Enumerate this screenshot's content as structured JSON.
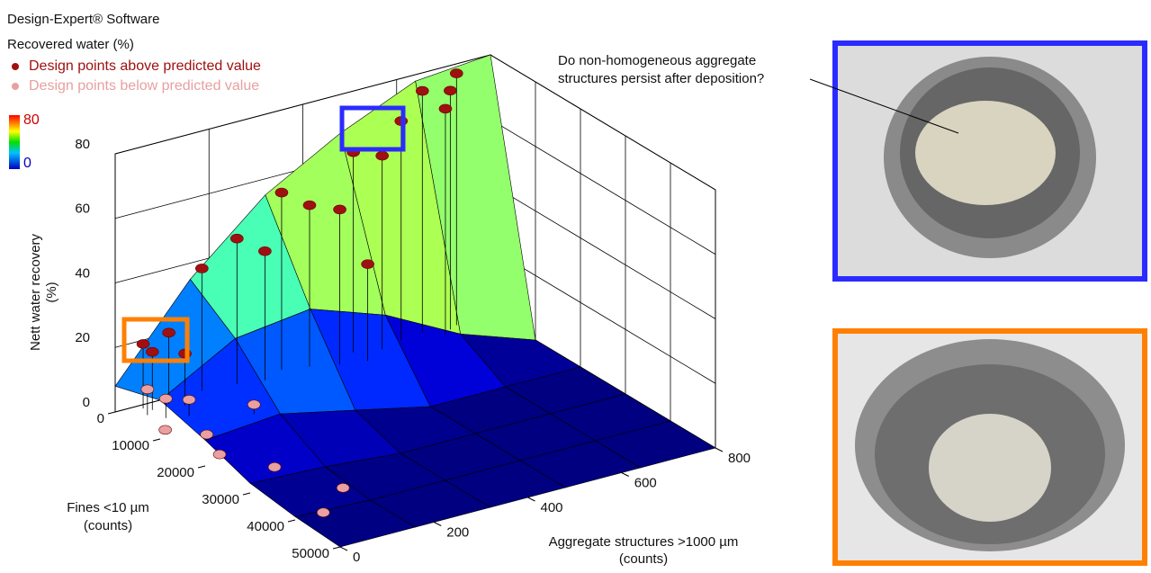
{
  "header": {
    "software": "Design-Expert® Software",
    "response": "Recovered water  (%)"
  },
  "chart_data": {
    "type": "surface3d",
    "zlabel": [
      "Nett water recovery",
      "(%)"
    ],
    "xlabel": [
      "Fines <10 µm",
      "(counts)"
    ],
    "ylabel": [
      "Aggregate structures >1000 µm",
      "(counts)"
    ],
    "xlim": [
      0,
      50000
    ],
    "xticks": [
      0,
      10000,
      20000,
      30000,
      40000,
      50000
    ],
    "ylim": [
      0,
      800
    ],
    "yticks": [
      0,
      200,
      400,
      600,
      800
    ],
    "zlim": [
      0,
      80
    ],
    "zticks": [
      0,
      20,
      40,
      60,
      80
    ],
    "clim": [
      0,
      80
    ],
    "grid": true,
    "surface": {
      "x": [
        0,
        10000,
        20000,
        30000,
        40000,
        50000
      ],
      "y": [
        0,
        160,
        320,
        480,
        640,
        800
      ],
      "z": [
        [
          8,
          35,
          55,
          68,
          78,
          80
        ],
        [
          12,
          25,
          28,
          20,
          8,
          0
        ],
        [
          8,
          10,
          5,
          0,
          0,
          0
        ],
        [
          3,
          2,
          0,
          0,
          0,
          0
        ],
        [
          1,
          0,
          0,
          0,
          0,
          0
        ],
        [
          0,
          0,
          0,
          0,
          0,
          0
        ]
      ]
    },
    "series": [
      {
        "name": "Design points above predicted value",
        "color": "#a01010",
        "x": [
          1000,
          2000,
          1500,
          3000,
          500,
          1000,
          2000,
          500,
          1500,
          3000,
          800,
          2000,
          1000,
          500,
          1500,
          800,
          2500,
          4000
        ],
        "y": [
          50,
          60,
          100,
          120,
          180,
          250,
          300,
          350,
          400,
          450,
          500,
          550,
          600,
          650,
          700,
          720,
          680,
          500
        ],
        "values": [
          20,
          18,
          22,
          16,
          38,
          45,
          40,
          55,
          50,
          48,
          62,
          60,
          68,
          75,
          74,
          78,
          70,
          30
        ]
      },
      {
        "name": "Design points below predicted value",
        "color": "#e8a0a0",
        "x": [
          3000,
          5000,
          6000,
          8000,
          12000,
          18000,
          25000,
          35000,
          40000,
          10000
        ],
        "y": [
          40,
          60,
          100,
          30,
          80,
          50,
          100,
          150,
          60,
          200
        ],
        "values": [
          8,
          6,
          5,
          0,
          0,
          0,
          0,
          0,
          0,
          3
        ]
      }
    ]
  },
  "annotation": [
    "Do non-homogeneous aggregate",
    "structures persist after deposition?"
  ]
}
